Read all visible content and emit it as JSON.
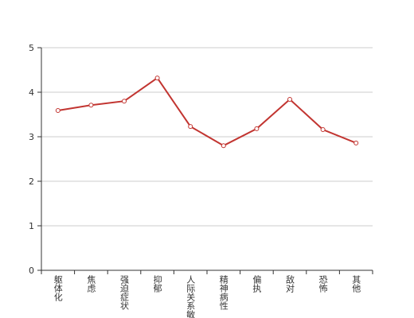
{
  "chart_data": {
    "type": "line",
    "categories": [
      "躯体化",
      "焦虑",
      "强迫症状",
      "抑郁",
      "人际关系敏感",
      "精神病性",
      "偏执",
      "敌对",
      "恐怖",
      "其他"
    ],
    "values": [
      3.59,
      3.71,
      3.8,
      4.32,
      3.23,
      2.8,
      3.18,
      3.84,
      3.16,
      2.86
    ],
    "color": "#c23531",
    "ylim": [
      0,
      5
    ],
    "yticks": [
      0,
      1,
      2,
      3,
      4,
      5
    ],
    "grid": true
  }
}
